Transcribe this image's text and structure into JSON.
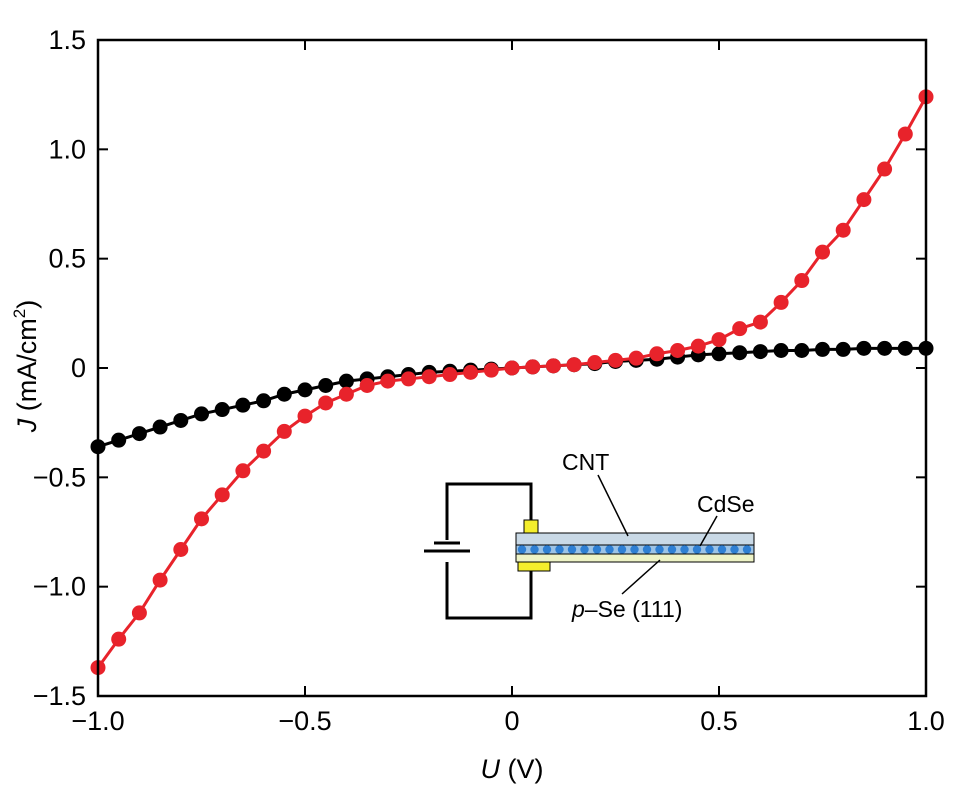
{
  "chart_data": {
    "type": "line",
    "xlabel_var": "U",
    "xlabel_unit": "(V)",
    "ylabel_var": "J",
    "ylabel_unit": "(mA/cm",
    "ylabel_sup": "2",
    "ylabel_close": ")",
    "xlim": [
      -1.0,
      1.0
    ],
    "ylim": [
      -1.5,
      1.5
    ],
    "xticks": [
      -1.0,
      -0.5,
      0,
      0.5,
      1.0
    ],
    "xtick_labels": [
      "−1.0",
      "−0.5",
      "0",
      "0.5",
      "1.0"
    ],
    "yticks": [
      -1.5,
      -1.0,
      -0.5,
      0,
      0.5,
      1.0,
      1.5
    ],
    "ytick_labels": [
      "−1.5",
      "−1.0",
      "−0.5",
      "0",
      "0.5",
      "1.0",
      "1.5"
    ],
    "grid": false,
    "series": [
      {
        "color": "#000000",
        "x": [
          -1.0,
          -0.95,
          -0.9,
          -0.85,
          -0.8,
          -0.75,
          -0.7,
          -0.65,
          -0.6,
          -0.55,
          -0.5,
          -0.45,
          -0.4,
          -0.35,
          -0.3,
          -0.25,
          -0.2,
          -0.15,
          -0.1,
          -0.05,
          0.0,
          0.05,
          0.1,
          0.15,
          0.2,
          0.25,
          0.3,
          0.35,
          0.4,
          0.45,
          0.5,
          0.55,
          0.6,
          0.65,
          0.7,
          0.75,
          0.8,
          0.85,
          0.9,
          0.95,
          1.0
        ],
        "y": [
          -0.36,
          -0.33,
          -0.3,
          -0.27,
          -0.24,
          -0.21,
          -0.19,
          -0.17,
          -0.15,
          -0.12,
          -0.1,
          -0.08,
          -0.06,
          -0.05,
          -0.04,
          -0.03,
          -0.02,
          -0.015,
          -0.01,
          -0.005,
          0.0,
          0.005,
          0.01,
          0.015,
          0.02,
          0.03,
          0.035,
          0.04,
          0.05,
          0.06,
          0.065,
          0.07,
          0.075,
          0.08,
          0.08,
          0.085,
          0.085,
          0.09,
          0.09,
          0.09,
          0.09
        ]
      },
      {
        "color": "#e8232b",
        "x": [
          -1.0,
          -0.95,
          -0.9,
          -0.85,
          -0.8,
          -0.75,
          -0.7,
          -0.65,
          -0.6,
          -0.55,
          -0.5,
          -0.45,
          -0.4,
          -0.35,
          -0.3,
          -0.25,
          -0.2,
          -0.15,
          -0.1,
          -0.05,
          0.0,
          0.05,
          0.1,
          0.15,
          0.2,
          0.25,
          0.3,
          0.35,
          0.4,
          0.45,
          0.5,
          0.55,
          0.6,
          0.65,
          0.7,
          0.75,
          0.8,
          0.85,
          0.9,
          0.95,
          1.0
        ],
        "y": [
          -1.37,
          -1.24,
          -1.12,
          -0.97,
          -0.83,
          -0.69,
          -0.58,
          -0.47,
          -0.38,
          -0.29,
          -0.22,
          -0.16,
          -0.12,
          -0.08,
          -0.06,
          -0.05,
          -0.04,
          -0.03,
          -0.02,
          -0.01,
          0.0,
          0.005,
          0.01,
          0.015,
          0.025,
          0.035,
          0.045,
          0.065,
          0.08,
          0.1,
          0.13,
          0.18,
          0.21,
          0.3,
          0.4,
          0.53,
          0.63,
          0.77,
          0.91,
          1.07,
          1.24
        ]
      }
    ],
    "inset": {
      "labels": {
        "cnt": "CNT",
        "cdse": "CdSe",
        "substrate_prefix": "p",
        "substrate_rest": "–Se (111)"
      },
      "colors": {
        "contact": "#f4ee2c",
        "cnt_layer": "#c9d9e6",
        "cdse_dots": "#2f7fd3",
        "substrate": "#eef3c6",
        "wire": "#000000"
      }
    }
  }
}
